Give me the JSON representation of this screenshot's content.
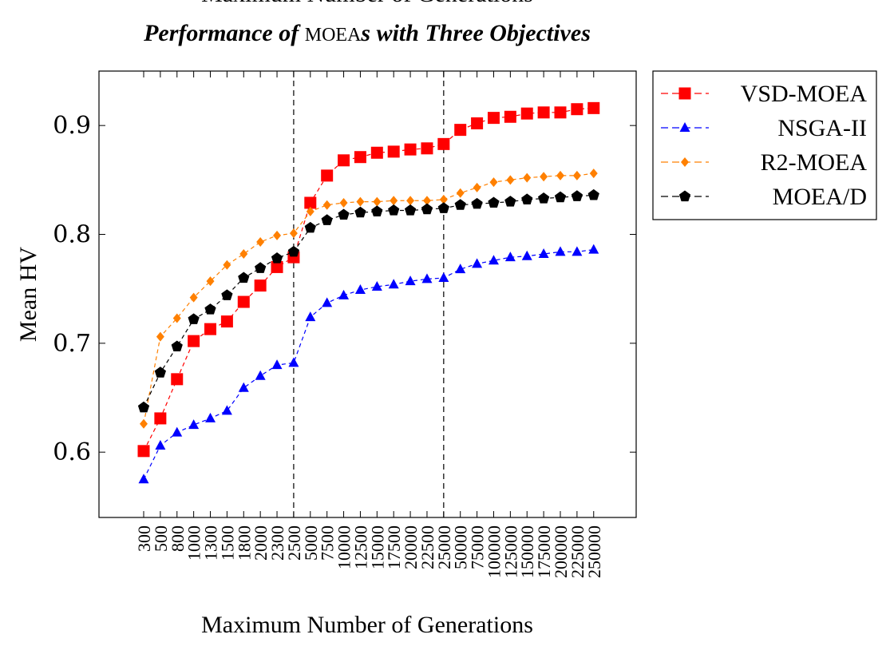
{
  "top_cut_label": "Maximum Number of Generations",
  "chart_data": {
    "type": "line",
    "title_parts": [
      {
        "text": "Performance of ",
        "style": "bolditalic"
      },
      {
        "text": "MOEA",
        "style": "smallcaps"
      },
      {
        "text": "s with Three Objectives",
        "style": "bolditalic"
      }
    ],
    "xlabel": "Maximum Number of Generations",
    "ylabel": "Mean HV",
    "ylim": [
      0.54,
      0.95
    ],
    "yticks": [
      0.6,
      0.7,
      0.8,
      0.9
    ],
    "ytick_labels": [
      "0.6",
      "0.7",
      "0.8",
      "0.9"
    ],
    "categories": [
      "300",
      "500",
      "800",
      "1000",
      "1300",
      "1500",
      "1800",
      "2000",
      "2300",
      "2500",
      "5000",
      "7500",
      "10000",
      "12500",
      "15000",
      "17500",
      "20000",
      "22500",
      "25000",
      "50000",
      "75000",
      "100000",
      "125000",
      "150000",
      "175000",
      "200000",
      "225000",
      "250000"
    ],
    "dashed_vlines_at_category": [
      "2500",
      "25000"
    ],
    "grid": false,
    "legend_position": "outside-top-right",
    "series": [
      {
        "name": "VSD-MOEA",
        "color": "#ff0000",
        "marker": "square",
        "values": [
          0.601,
          0.631,
          0.667,
          0.702,
          0.713,
          0.72,
          0.738,
          0.753,
          0.77,
          0.779,
          0.829,
          0.854,
          0.868,
          0.871,
          0.875,
          0.876,
          0.878,
          0.879,
          0.883,
          0.896,
          0.902,
          0.907,
          0.908,
          0.911,
          0.912,
          0.912,
          0.915,
          0.916
        ]
      },
      {
        "name": "NSGA-II",
        "color": "#0000ff",
        "marker": "triangle",
        "values": [
          0.575,
          0.606,
          0.618,
          0.625,
          0.631,
          0.638,
          0.659,
          0.67,
          0.68,
          0.682,
          0.724,
          0.737,
          0.744,
          0.749,
          0.752,
          0.754,
          0.757,
          0.759,
          0.76,
          0.768,
          0.773,
          0.776,
          0.779,
          0.78,
          0.782,
          0.784,
          0.784,
          0.786
        ]
      },
      {
        "name": "R2-MOEA",
        "color": "#ff8000",
        "marker": "diamond",
        "values": [
          0.626,
          0.706,
          0.723,
          0.742,
          0.757,
          0.772,
          0.782,
          0.793,
          0.799,
          0.801,
          0.821,
          0.827,
          0.829,
          0.83,
          0.83,
          0.831,
          0.831,
          0.831,
          0.832,
          0.838,
          0.843,
          0.848,
          0.85,
          0.852,
          0.853,
          0.854,
          0.854,
          0.856
        ]
      },
      {
        "name": "MOEA/D",
        "color": "#000000",
        "marker": "pentagon",
        "values": [
          0.641,
          0.673,
          0.697,
          0.722,
          0.731,
          0.744,
          0.76,
          0.769,
          0.778,
          0.784,
          0.806,
          0.813,
          0.818,
          0.82,
          0.821,
          0.822,
          0.822,
          0.823,
          0.824,
          0.827,
          0.828,
          0.829,
          0.83,
          0.832,
          0.833,
          0.834,
          0.835,
          0.836
        ]
      }
    ]
  }
}
